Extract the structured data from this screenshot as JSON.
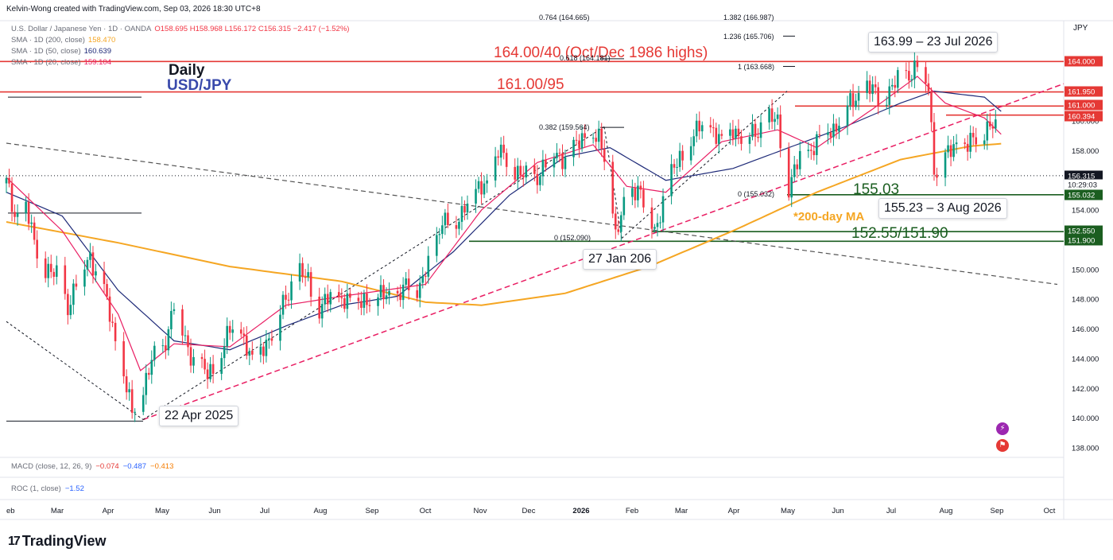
{
  "header": {
    "creator": "Kelvin-Wong created with TradingView.com, Sep 03, 2026 18:30 UTC+8",
    "symbol": "U.S. Dollar / Japanese Yen · 1D · OANDA",
    "ohlc": "O158.695 H158.968 L156.172 C156.315 −2.417 (−1.52%)",
    "sma200_label": "SMA · 1D (200, close)",
    "sma200_value": "158.470",
    "sma50_label": "SMA · 1D (50, close)",
    "sma50_value": "160.639",
    "sma20_label": "SMA · 1D (20, close)",
    "sma20_value": "159.104",
    "currency": "JPY"
  },
  "annotations": {
    "daily": "Daily",
    "pair": "USD/JPY",
    "level_164": "164.00/40 (Oct/Dec 1986 highs)",
    "level_161": "161.00/95",
    "level_155": "155.03",
    "sma200": "*200-day MA",
    "level_152": "152.55/151.90",
    "box_high": "163.99 – 23 Jul 2026",
    "box_low": "155.23 – 3 Aug 2026",
    "box_jan": "27 Jan 206",
    "box_apr": "22 Apr 2025"
  },
  "fib_labels": {
    "f1": "0.382 (159.564)",
    "f2": "0 (152.090)",
    "f3": "1.236 (165.706)",
    "f4": "1 (163.668)",
    "f5": "0.618 (164.181)",
    "f6": "0 (155.032)",
    "f7": "0.764 (164.665)",
    "f8": "1.382 (166.987)"
  },
  "indicators": {
    "macd_label": "MACD (close, 12, 26, 9)",
    "macd_v1": "−0.074",
    "macd_v2": "−0.487",
    "macd_v3": "−0.413",
    "roc_label": "ROC (1, close)",
    "roc_v": "−1.52"
  },
  "branding": {
    "logo": "TradingView"
  },
  "colors": {
    "up": "#089981",
    "down": "#f23645",
    "sma200": "#f5a623",
    "sma50": "#1e2a78",
    "sma20": "#e91e63",
    "level_red": "#e53935",
    "level_green": "#1b5e20",
    "trend": "#e91e63"
  },
  "chart_data": {
    "type": "candlestick",
    "ylim": [
      137.4,
      168.2
    ],
    "y_ticks": [
      138,
      140,
      142,
      144,
      146,
      148,
      150,
      152,
      154,
      156,
      158,
      160
    ],
    "x_ticks": [
      "eb",
      "Mar",
      "Apr",
      "May",
      "Jun",
      "Jul",
      "Aug",
      "Sep",
      "Oct",
      "Nov",
      "Dec",
      "2026",
      "Feb",
      "Mar",
      "Apr",
      "May",
      "Jun",
      "Jul",
      "Aug",
      "Sep",
      "Oct"
    ],
    "price_tags": [
      {
        "label": "164.000",
        "value": 164.0,
        "color": "#e53935"
      },
      {
        "label": "161.950",
        "value": 161.95,
        "color": "#e53935"
      },
      {
        "label": "161.000",
        "value": 161.0,
        "color": "#e53935"
      },
      {
        "label": "160.394",
        "value": 160.394,
        "color": "#e53935"
      },
      {
        "label": "156.315",
        "value": 156.315,
        "color": "#131722"
      },
      {
        "label": "10:29:03",
        "value": 155.84,
        "color": "#131722"
      },
      {
        "label": "155.032",
        "value": 155.032,
        "color": "#1b5e20"
      },
      {
        "label": "152.550",
        "value": 152.55,
        "color": "#1b5e20"
      },
      {
        "label": "151.900",
        "value": 151.9,
        "color": "#1b5e20"
      }
    ],
    "key_points": [
      {
        "date": "2025-04-22",
        "close": 139.9
      },
      {
        "date": "2026-01-27",
        "close": 152.09
      },
      {
        "date": "2026-07-23",
        "close": 163.99
      },
      {
        "date": "2026-08-03",
        "close": 155.23
      },
      {
        "date": "2026-09-03",
        "close": 156.315
      }
    ],
    "price_path": [
      [
        0,
        155.8
      ],
      [
        3,
        153.6
      ],
      [
        7,
        154.2
      ],
      [
        10,
        151.6
      ],
      [
        14,
        150.2
      ],
      [
        18,
        149.4
      ],
      [
        22,
        147.6
      ],
      [
        26,
        149.6
      ],
      [
        30,
        151.0
      ],
      [
        35,
        148.4
      ],
      [
        40,
        144.6
      ],
      [
        45,
        140.2
      ],
      [
        48,
        141.6
      ],
      [
        52,
        143.8
      ],
      [
        56,
        144.6
      ],
      [
        60,
        147.8
      ],
      [
        64,
        145.2
      ],
      [
        68,
        143.6
      ],
      [
        72,
        142.8
      ],
      [
        76,
        144.0
      ],
      [
        80,
        145.8
      ],
      [
        84,
        146.0
      ],
      [
        88,
        143.6
      ],
      [
        92,
        145.0
      ],
      [
        96,
        146.0
      ],
      [
        100,
        148.2
      ],
      [
        104,
        149.8
      ],
      [
        108,
        149.2
      ],
      [
        112,
        147.4
      ],
      [
        116,
        148.0
      ],
      [
        120,
        148.2
      ],
      [
        124,
        147.6
      ],
      [
        128,
        148.2
      ],
      [
        132,
        147.8
      ],
      [
        136,
        148.6
      ],
      [
        140,
        147.8
      ],
      [
        144,
        149.2
      ],
      [
        148,
        148.8
      ],
      [
        152,
        150.6
      ],
      [
        156,
        153.6
      ],
      [
        160,
        152.4
      ],
      [
        164,
        154.6
      ],
      [
        168,
        155.0
      ],
      [
        172,
        156.0
      ],
      [
        176,
        157.8
      ],
      [
        180,
        157.2
      ],
      [
        184,
        156.4
      ],
      [
        188,
        155.8
      ],
      [
        192,
        157.0
      ],
      [
        196,
        157.8
      ],
      [
        200,
        157.6
      ],
      [
        204,
        158.2
      ],
      [
        208,
        159.4
      ],
      [
        212,
        158.6
      ],
      [
        216,
        156.2
      ],
      [
        218,
        152.4
      ],
      [
        222,
        154.6
      ],
      [
        226,
        155.8
      ],
      [
        230,
        153.6
      ],
      [
        232,
        152.4
      ],
      [
        236,
        155.6
      ],
      [
        240,
        157.0
      ],
      [
        244,
        158.6
      ],
      [
        248,
        159.4
      ],
      [
        252,
        159.8
      ],
      [
        256,
        158.4
      ],
      [
        260,
        159.6
      ],
      [
        264,
        158.8
      ],
      [
        268,
        159.2
      ],
      [
        272,
        160.2
      ],
      [
        276,
        159.8
      ],
      [
        280,
        155.6
      ],
      [
        284,
        157.4
      ],
      [
        288,
        158.2
      ],
      [
        292,
        159.0
      ],
      [
        296,
        159.6
      ],
      [
        300,
        160.6
      ],
      [
        304,
        161.6
      ],
      [
        308,
        162.2
      ],
      [
        312,
        161.6
      ],
      [
        316,
        162.0
      ],
      [
        320,
        162.8
      ],
      [
        324,
        163.4
      ],
      [
        327,
        163.9
      ],
      [
        330,
        162.2
      ],
      [
        332,
        157.2
      ],
      [
        334,
        155.6
      ],
      [
        336,
        157.4
      ],
      [
        340,
        158.6
      ],
      [
        344,
        158.2
      ],
      [
        348,
        159.0
      ],
      [
        352,
        159.8
      ],
      [
        354,
        159.2
      ],
      [
        356,
        156.3
      ]
    ],
    "sma200": [
      [
        0,
        153.2
      ],
      [
        40,
        151.8
      ],
      [
        80,
        150.2
      ],
      [
        120,
        149.2
      ],
      [
        150,
        147.8
      ],
      [
        170,
        147.6
      ],
      [
        200,
        148.4
      ],
      [
        230,
        150.2
      ],
      [
        260,
        152.6
      ],
      [
        290,
        155.2
      ],
      [
        320,
        157.4
      ],
      [
        345,
        158.3
      ],
      [
        356,
        158.47
      ]
    ],
    "sma50": [
      [
        0,
        155.2
      ],
      [
        20,
        153.6
      ],
      [
        40,
        148.6
      ],
      [
        60,
        145.2
      ],
      [
        80,
        144.6
      ],
      [
        100,
        146.2
      ],
      [
        120,
        147.6
      ],
      [
        140,
        148.2
      ],
      [
        160,
        151.2
      ],
      [
        180,
        155.0
      ],
      [
        200,
        157.6
      ],
      [
        216,
        158.2
      ],
      [
        236,
        156.0
      ],
      [
        260,
        156.8
      ],
      [
        280,
        158.2
      ],
      [
        300,
        159.6
      ],
      [
        320,
        161.2
      ],
      [
        332,
        162.0
      ],
      [
        350,
        161.6
      ],
      [
        356,
        160.64
      ]
    ],
    "sma20": [
      [
        0,
        156.2
      ],
      [
        20,
        152.6
      ],
      [
        40,
        147.0
      ],
      [
        48,
        143.2
      ],
      [
        60,
        145.0
      ],
      [
        80,
        144.8
      ],
      [
        100,
        147.6
      ],
      [
        120,
        148.2
      ],
      [
        150,
        149.0
      ],
      [
        170,
        154.0
      ],
      [
        190,
        157.2
      ],
      [
        210,
        158.4
      ],
      [
        222,
        155.6
      ],
      [
        236,
        155.2
      ],
      [
        256,
        158.6
      ],
      [
        276,
        159.4
      ],
      [
        290,
        158.2
      ],
      [
        310,
        160.8
      ],
      [
        326,
        163.0
      ],
      [
        336,
        161.2
      ],
      [
        350,
        160.2
      ],
      [
        356,
        159.1
      ]
    ]
  }
}
